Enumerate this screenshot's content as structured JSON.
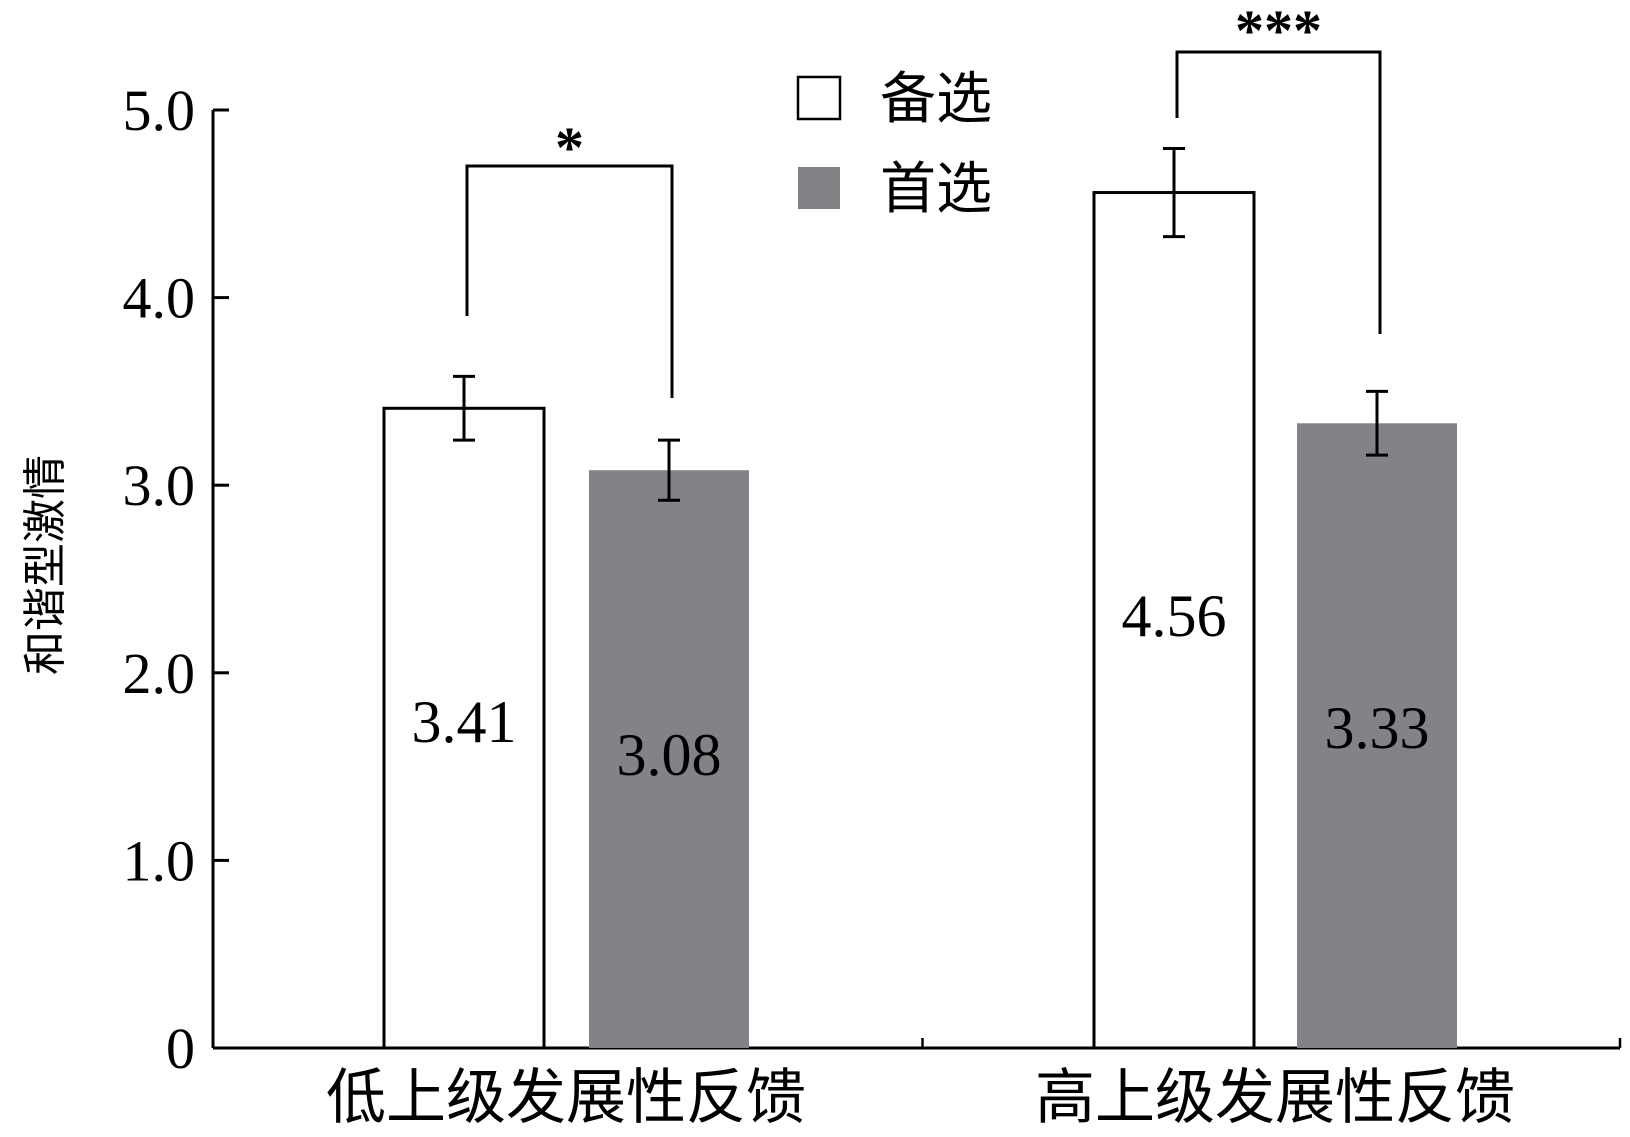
{
  "chart_data": {
    "type": "bar",
    "ylabel": "和谐型激情",
    "ylim": [
      0,
      5.0
    ],
    "yticks": [
      "0",
      "1.0",
      "2.0",
      "3.0",
      "4.0",
      "5.0"
    ],
    "categories": [
      "低上级发展性反馈",
      "高上级发展性反馈"
    ],
    "series": [
      {
        "name": "备选",
        "color": "#ffffff",
        "values": [
          3.41,
          4.56
        ],
        "labels": [
          "3.41",
          "4.56"
        ],
        "error": [
          0.34,
          0.47
        ]
      },
      {
        "name": "首选",
        "color": "#838286",
        "values": [
          3.08,
          3.33
        ],
        "labels": [
          "3.08",
          "3.33"
        ],
        "error": [
          0.32,
          0.34
        ]
      }
    ],
    "significance": [
      "*",
      "***"
    ],
    "legend_position": "top-center",
    "grid": false
  }
}
